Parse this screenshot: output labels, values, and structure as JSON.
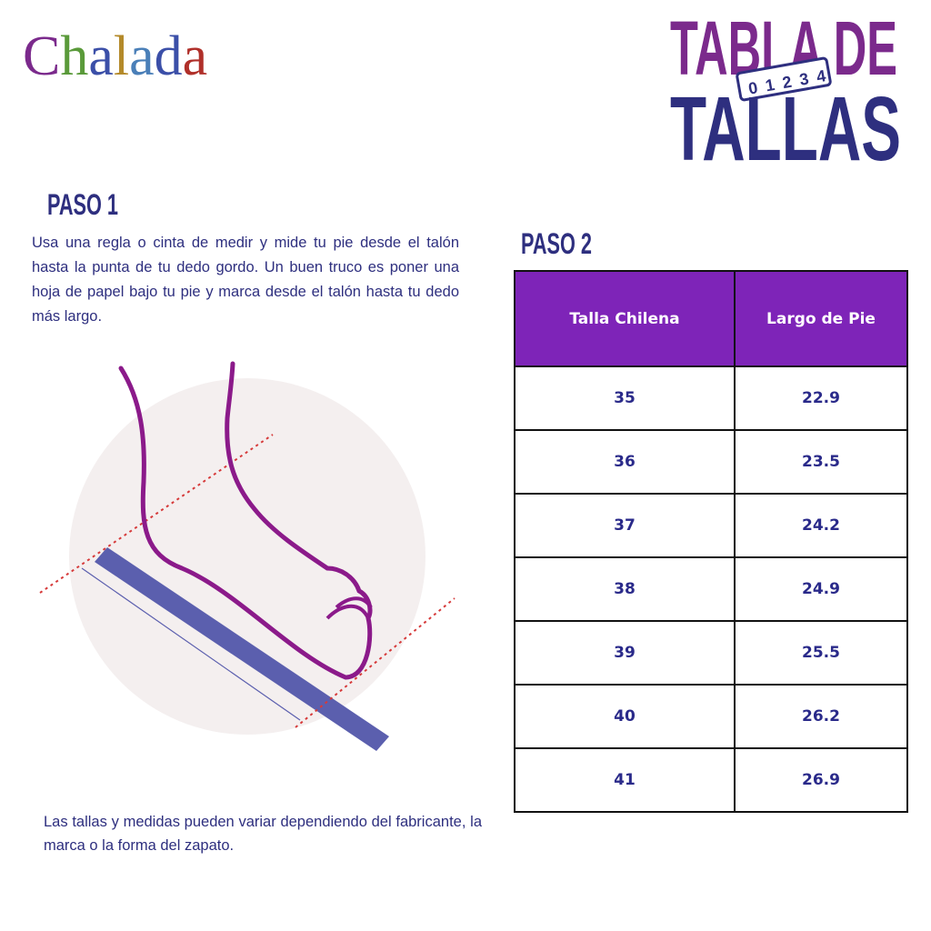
{
  "logo": "Chalada",
  "title": {
    "line1": "TABLA DE",
    "line2": "TALLAS",
    "ruler_digits": [
      "0",
      "1",
      "2",
      "3",
      "4"
    ]
  },
  "step1": {
    "heading": "PASO 1",
    "text": "Usa una regla o cinta de medir y mide tu pie desde el talón hasta la punta de tu dedo gordo. Un buen truco es poner una hoja de papel bajo tu pie y marca desde el talón hasta tu dedo más largo."
  },
  "step2": {
    "heading": "PASO 2",
    "table": {
      "columns": [
        "Talla Chilena",
        "Largo de Pie"
      ],
      "rows": [
        [
          35,
          22.9
        ],
        [
          36,
          23.5
        ],
        [
          37,
          24.2
        ],
        [
          38,
          24.9
        ],
        [
          39,
          25.5
        ],
        [
          40,
          26.2
        ],
        [
          41,
          26.9
        ]
      ]
    }
  },
  "note": "Las tallas y medidas pueden variar dependiendo del fabricante, la marca o la forma del zapato."
}
